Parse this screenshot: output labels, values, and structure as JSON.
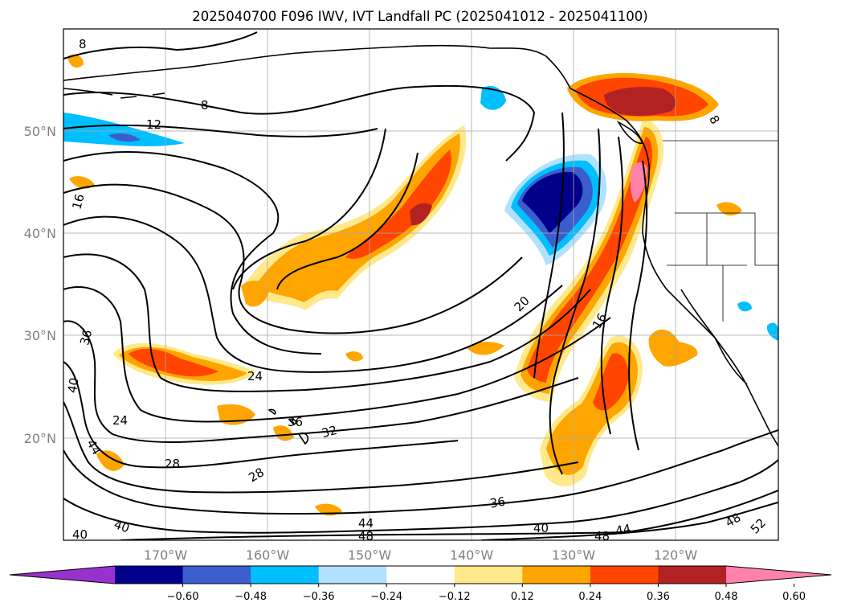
{
  "figure": {
    "title": "2025040700 F096 IWV, IVT Landfall PC (2025041012 - 2025041100)"
  },
  "axes": {
    "lat_labels": [
      "50°N",
      "40°N",
      "30°N",
      "20°N"
    ],
    "lon_labels": [
      "170°W",
      "160°W",
      "150°W",
      "140°W",
      "130°W",
      "120°W"
    ],
    "grid": true,
    "grid_color": "#a9a9a9",
    "tick_label_color": "#808080"
  },
  "colorbar": {
    "orientation": "horizontal",
    "position": "bottom",
    "extend": "both",
    "tick_labels": [
      "−0.60",
      "−0.48",
      "−0.36",
      "−0.24",
      "−0.12",
      "0.12",
      "0.24",
      "0.36",
      "0.48",
      "0.60"
    ],
    "colors": [
      "#9932cc",
      "#00008b",
      "#3a5fcd",
      "#00bfff",
      "#b0e2ff",
      "#ffffff",
      "#ffe98a",
      "#ffa500",
      "#ff4500",
      "#b22222",
      "#ff82ab"
    ]
  },
  "chart_data": {
    "type": "map",
    "fill_variable": "IVT Landfall PC",
    "contour_variable": "IWV",
    "contour_labels": [
      "8",
      "8",
      "12",
      "16",
      "20",
      "16",
      "24",
      "24",
      "28",
      "28",
      "32",
      "36",
      "36",
      "36",
      "40",
      "40",
      "40",
      "44",
      "44",
      "44",
      "48",
      "48",
      "48",
      "52",
      "8"
    ],
    "lon_range": [
      -180,
      -110
    ],
    "lat_range": [
      10,
      60
    ],
    "coastline_color": "#000000"
  }
}
